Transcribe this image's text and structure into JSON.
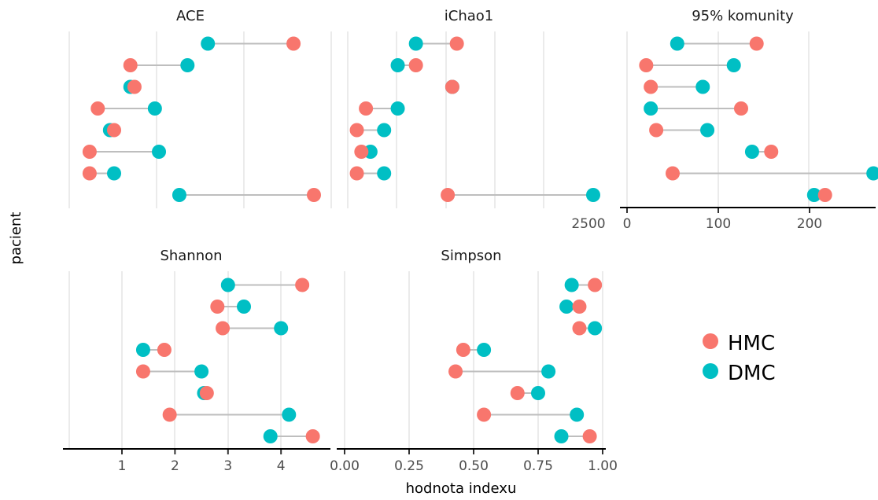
{
  "chart_data": {
    "type": "dumbbell",
    "xlabel": "hodnota indexu",
    "ylabel": "pacient",
    "legend": {
      "placement": "right",
      "entries": [
        {
          "label": "HMC",
          "color": "#F8766D"
        },
        {
          "label": "DMC",
          "color": "#00BFC4"
        }
      ]
    },
    "connector_color": "#BEBEBE",
    "grid": true,
    "panels": [
      {
        "title": "ACE",
        "xlim": [
          0,
          3000
        ],
        "ticks": [],
        "hmc": [
          3000,
          250,
          250,
          550,
          350,
          800,
          750,
          2750
        ],
        "dmc": [
          1350,
          550,
          1100,
          500,
          1050,
          750,
          1450,
          1700
        ]
      },
      {
        "title": "iChao1",
        "xlim": [
          0,
          2700
        ],
        "ticks": [
          {
            "v": 2500,
            "label": "2500"
          }
        ],
        "hmc": [
          1100,
          100,
          150,
          100,
          200,
          1150,
          750,
          1200
        ],
        "dmc": [
          2700,
          400,
          250,
          400,
          550,
          1150,
          550,
          750
        ]
      },
      {
        "title": "95% komunity",
        "xlim": [
          0,
          270
        ],
        "ticks": [
          {
            "v": 0,
            "label": "0"
          },
          {
            "v": 100,
            "label": "100"
          },
          {
            "v": 200,
            "label": "200"
          }
        ],
        "hmc": [
          217,
          50,
          158,
          32,
          125,
          26,
          21,
          142
        ],
        "dmc": [
          205,
          270,
          137,
          88,
          26,
          83,
          117,
          55
        ]
      },
      {
        "title": "Shannon",
        "xlim": [
          0,
          4.6
        ],
        "ticks": [
          {
            "v": 1,
            "label": "1"
          },
          {
            "v": 2,
            "label": "2"
          },
          {
            "v": 3,
            "label": "3"
          },
          {
            "v": 4,
            "label": "4"
          }
        ],
        "hmc": [
          4.6,
          1.9,
          2.6,
          1.4,
          1.8,
          2.9,
          2.8,
          4.4
        ],
        "dmc": [
          3.8,
          4.15,
          2.55,
          2.5,
          1.4,
          4.0,
          3.3,
          3.0
        ]
      },
      {
        "title": "Simpson",
        "xlim": [
          0,
          1
        ],
        "ticks": [
          {
            "v": 0,
            "label": "0.00"
          },
          {
            "v": 0.25,
            "label": "0.25"
          },
          {
            "v": 0.5,
            "label": "0.50"
          },
          {
            "v": 0.75,
            "label": "0.75"
          },
          {
            "v": 1,
            "label": "1.00"
          }
        ],
        "hmc": [
          0.95,
          0.54,
          0.67,
          0.43,
          0.46,
          0.91,
          0.91,
          0.97
        ],
        "dmc": [
          0.84,
          0.9,
          0.75,
          0.79,
          0.54,
          0.97,
          0.86,
          0.88
        ]
      }
    ]
  }
}
